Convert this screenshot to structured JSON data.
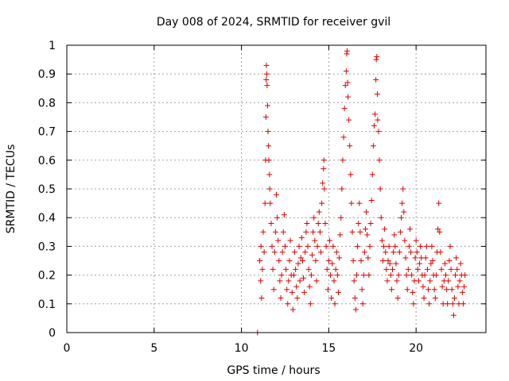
{
  "chart_data": {
    "type": "scatter",
    "title": "Day 008 of 2024, SRMTID for receiver gvil",
    "xlabel": "GPS time / hours",
    "ylabel": "SRMTID / TECUs",
    "xlim": [
      0,
      24
    ],
    "ylim": [
      0,
      1
    ],
    "grid": true,
    "marker": "+",
    "color": "#dd0000",
    "xticks": [
      0,
      5,
      10,
      15,
      20
    ],
    "xtick_labels": [
      "0",
      "5",
      "10",
      "15",
      "20"
    ],
    "yticks": [
      0,
      0.1,
      0.2,
      0.3,
      0.4,
      0.5,
      0.6,
      0.7,
      0.8,
      0.9,
      1
    ],
    "ytick_labels": [
      "0",
      "0.1",
      "0.2",
      "0.3",
      "0.4",
      "0.5",
      "0.6",
      "0.7",
      "0.8",
      "0.9",
      "1"
    ],
    "series": [
      {
        "name": "SRMTID",
        "points": [
          [
            10.92,
            0.0
          ],
          [
            11.05,
            0.25
          ],
          [
            11.1,
            0.18
          ],
          [
            11.12,
            0.3
          ],
          [
            11.15,
            0.12
          ],
          [
            11.2,
            0.22
          ],
          [
            11.25,
            0.35
          ],
          [
            11.3,
            0.28
          ],
          [
            11.35,
            0.45
          ],
          [
            11.38,
            0.6
          ],
          [
            11.4,
            0.75
          ],
          [
            11.42,
            0.88
          ],
          [
            11.43,
            0.93
          ],
          [
            11.45,
            0.9
          ],
          [
            11.47,
            0.86
          ],
          [
            11.5,
            0.79
          ],
          [
            11.52,
            0.7
          ],
          [
            11.55,
            0.65
          ],
          [
            11.57,
            0.6
          ],
          [
            11.6,
            0.55
          ],
          [
            11.62,
            0.5
          ],
          [
            11.65,
            0.45
          ],
          [
            11.7,
            0.38
          ],
          [
            11.75,
            0.3
          ],
          [
            11.8,
            0.22
          ],
          [
            11.85,
            0.15
          ],
          [
            11.9,
            0.28
          ],
          [
            11.95,
            0.35
          ],
          [
            12.0,
            0.48
          ],
          [
            12.05,
            0.4
          ],
          [
            12.1,
            0.32
          ],
          [
            12.15,
            0.25
          ],
          [
            12.2,
            0.18
          ],
          [
            12.25,
            0.12
          ],
          [
            12.3,
            0.2
          ],
          [
            12.35,
            0.28
          ],
          [
            12.4,
            0.35
          ],
          [
            12.45,
            0.41
          ],
          [
            12.5,
            0.3
          ],
          [
            12.55,
            0.22
          ],
          [
            12.6,
            0.15
          ],
          [
            12.65,
            0.1
          ],
          [
            12.7,
            0.18
          ],
          [
            12.75,
            0.25
          ],
          [
            12.8,
            0.32
          ],
          [
            12.85,
            0.2
          ],
          [
            12.9,
            0.14
          ],
          [
            12.95,
            0.08
          ],
          [
            13.0,
            0.2
          ],
          [
            13.05,
            0.28
          ],
          [
            13.1,
            0.22
          ],
          [
            13.15,
            0.16
          ],
          [
            13.2,
            0.12
          ],
          [
            13.25,
            0.24
          ],
          [
            13.3,
            0.3
          ],
          [
            13.35,
            0.18
          ],
          [
            13.4,
            0.26
          ],
          [
            13.45,
            0.33
          ],
          [
            13.5,
            0.25
          ],
          [
            13.55,
            0.19
          ],
          [
            13.6,
            0.14
          ],
          [
            13.65,
            0.28
          ],
          [
            13.7,
            0.35
          ],
          [
            13.75,
            0.38
          ],
          [
            13.8,
            0.3
          ],
          [
            13.85,
            0.22
          ],
          [
            13.9,
            0.16
          ],
          [
            13.95,
            0.1
          ],
          [
            14.0,
            0.2
          ],
          [
            14.05,
            0.27
          ],
          [
            14.1,
            0.35
          ],
          [
            14.15,
            0.4
          ],
          [
            14.2,
            0.32
          ],
          [
            14.25,
            0.25
          ],
          [
            14.3,
            0.18
          ],
          [
            14.35,
            0.3
          ],
          [
            14.4,
            0.38
          ],
          [
            14.45,
            0.42
          ],
          [
            14.5,
            0.35
          ],
          [
            14.55,
            0.28
          ],
          [
            14.6,
            0.45
          ],
          [
            14.65,
            0.52
          ],
          [
            14.7,
            0.57
          ],
          [
            14.72,
            0.6
          ],
          [
            14.75,
            0.5
          ],
          [
            14.8,
            0.38
          ],
          [
            14.85,
            0.3
          ],
          [
            14.9,
            0.22
          ],
          [
            14.95,
            0.15
          ],
          [
            15.0,
            0.25
          ],
          [
            15.05,
            0.32
          ],
          [
            15.1,
            0.2
          ],
          [
            15.15,
            0.12
          ],
          [
            15.2,
            0.24
          ],
          [
            15.25,
            0.3
          ],
          [
            15.3,
            0.18
          ],
          [
            15.35,
            0.1
          ],
          [
            15.4,
            0.22
          ],
          [
            15.45,
            0.28
          ],
          [
            15.5,
            0.2
          ],
          [
            15.55,
            0.14
          ],
          [
            15.6,
            0.26
          ],
          [
            15.65,
            0.34
          ],
          [
            15.7,
            0.4
          ],
          [
            15.75,
            0.5
          ],
          [
            15.8,
            0.6
          ],
          [
            15.85,
            0.68
          ],
          [
            15.9,
            0.78
          ],
          [
            15.95,
            0.86
          ],
          [
            16.0,
            0.91
          ],
          [
            16.03,
            0.97
          ],
          [
            16.05,
            0.98
          ],
          [
            16.08,
            0.87
          ],
          [
            16.1,
            0.82
          ],
          [
            16.15,
            0.74
          ],
          [
            16.2,
            0.65
          ],
          [
            16.25,
            0.55
          ],
          [
            16.3,
            0.45
          ],
          [
            16.35,
            0.35
          ],
          [
            16.4,
            0.25
          ],
          [
            16.45,
            0.18
          ],
          [
            16.5,
            0.12
          ],
          [
            16.55,
            0.08
          ],
          [
            16.6,
            0.2
          ],
          [
            16.65,
            0.3
          ],
          [
            16.7,
            0.38
          ],
          [
            16.75,
            0.45
          ],
          [
            16.8,
            0.35
          ],
          [
            16.85,
            0.25
          ],
          [
            16.9,
            0.15
          ],
          [
            16.95,
            0.1
          ],
          [
            17.0,
            0.2
          ],
          [
            17.05,
            0.28
          ],
          [
            17.1,
            0.36
          ],
          [
            17.15,
            0.42
          ],
          [
            17.2,
            0.34
          ],
          [
            17.25,
            0.26
          ],
          [
            17.3,
            0.2
          ],
          [
            17.35,
            0.3
          ],
          [
            17.4,
            0.38
          ],
          [
            17.45,
            0.46
          ],
          [
            17.5,
            0.55
          ],
          [
            17.55,
            0.65
          ],
          [
            17.6,
            0.72
          ],
          [
            17.65,
            0.76
          ],
          [
            17.7,
            0.88
          ],
          [
            17.72,
            0.95
          ],
          [
            17.75,
            0.96
          ],
          [
            17.78,
            0.83
          ],
          [
            17.8,
            0.74
          ],
          [
            17.85,
            0.7
          ],
          [
            17.9,
            0.6
          ],
          [
            17.95,
            0.5
          ],
          [
            18.0,
            0.4
          ],
          [
            18.05,
            0.32
          ],
          [
            18.1,
            0.25
          ],
          [
            18.15,
            0.3
          ],
          [
            18.2,
            0.36
          ],
          [
            18.25,
            0.28
          ],
          [
            18.3,
            0.22
          ],
          [
            18.35,
            0.18
          ],
          [
            18.4,
            0.25
          ],
          [
            18.45,
            0.3
          ],
          [
            18.5,
            0.24
          ],
          [
            18.55,
            0.2
          ],
          [
            18.6,
            0.15
          ],
          [
            18.65,
            0.22
          ],
          [
            18.7,
            0.28
          ],
          [
            18.75,
            0.34
          ],
          [
            18.8,
            0.3
          ],
          [
            18.85,
            0.24
          ],
          [
            18.9,
            0.18
          ],
          [
            18.95,
            0.12
          ],
          [
            19.0,
            0.2
          ],
          [
            19.05,
            0.28
          ],
          [
            19.1,
            0.35
          ],
          [
            19.15,
            0.4
          ],
          [
            19.2,
            0.45
          ],
          [
            19.25,
            0.5
          ],
          [
            19.3,
            0.42
          ],
          [
            19.35,
            0.32
          ],
          [
            19.4,
            0.26
          ],
          [
            19.45,
            0.2
          ],
          [
            19.5,
            0.15
          ],
          [
            19.55,
            0.22
          ],
          [
            19.6,
            0.3
          ],
          [
            19.65,
            0.36
          ],
          [
            19.7,
            0.28
          ],
          [
            19.75,
            0.2
          ],
          [
            19.8,
            0.14
          ],
          [
            19.85,
            0.1
          ],
          [
            19.9,
            0.18
          ],
          [
            19.95,
            0.26
          ],
          [
            20.0,
            0.32
          ],
          [
            20.05,
            0.28
          ],
          [
            20.1,
            0.22
          ],
          [
            20.15,
            0.18
          ],
          [
            20.2,
            0.24
          ],
          [
            20.25,
            0.3
          ],
          [
            20.3,
            0.26
          ],
          [
            20.35,
            0.2
          ],
          [
            20.4,
            0.16
          ],
          [
            20.45,
            0.12
          ],
          [
            20.5,
            0.2
          ],
          [
            20.55,
            0.26
          ],
          [
            20.6,
            0.3
          ],
          [
            20.65,
            0.22
          ],
          [
            20.7,
            0.15
          ],
          [
            20.75,
            0.1
          ],
          [
            20.8,
            0.18
          ],
          [
            20.85,
            0.24
          ],
          [
            20.9,
            0.3
          ],
          [
            20.95,
            0.25
          ],
          [
            21.0,
            0.2
          ],
          [
            21.05,
            0.15
          ],
          [
            21.1,
            0.12
          ],
          [
            21.15,
            0.2
          ],
          [
            21.2,
            0.28
          ],
          [
            21.25,
            0.36
          ],
          [
            21.3,
            0.45
          ],
          [
            21.35,
            0.35
          ],
          [
            21.4,
            0.28
          ],
          [
            21.45,
            0.22
          ],
          [
            21.5,
            0.16
          ],
          [
            21.55,
            0.1
          ],
          [
            21.6,
            0.18
          ],
          [
            21.65,
            0.24
          ],
          [
            21.7,
            0.2
          ],
          [
            21.75,
            0.15
          ],
          [
            21.8,
            0.1
          ],
          [
            21.85,
            0.18
          ],
          [
            21.9,
            0.25
          ],
          [
            21.95,
            0.3
          ],
          [
            22.0,
            0.22
          ],
          [
            22.05,
            0.15
          ],
          [
            22.1,
            0.1
          ],
          [
            22.15,
            0.06
          ],
          [
            22.2,
            0.12
          ],
          [
            22.25,
            0.2
          ],
          [
            22.3,
            0.26
          ],
          [
            22.35,
            0.22
          ],
          [
            22.4,
            0.16
          ],
          [
            22.45,
            0.1
          ],
          [
            22.5,
            0.18
          ],
          [
            22.55,
            0.24
          ],
          [
            22.6,
            0.2
          ],
          [
            22.65,
            0.14
          ],
          [
            22.7,
            0.1
          ],
          [
            22.75,
            0.16
          ],
          [
            22.8,
            0.2
          ]
        ]
      }
    ]
  }
}
